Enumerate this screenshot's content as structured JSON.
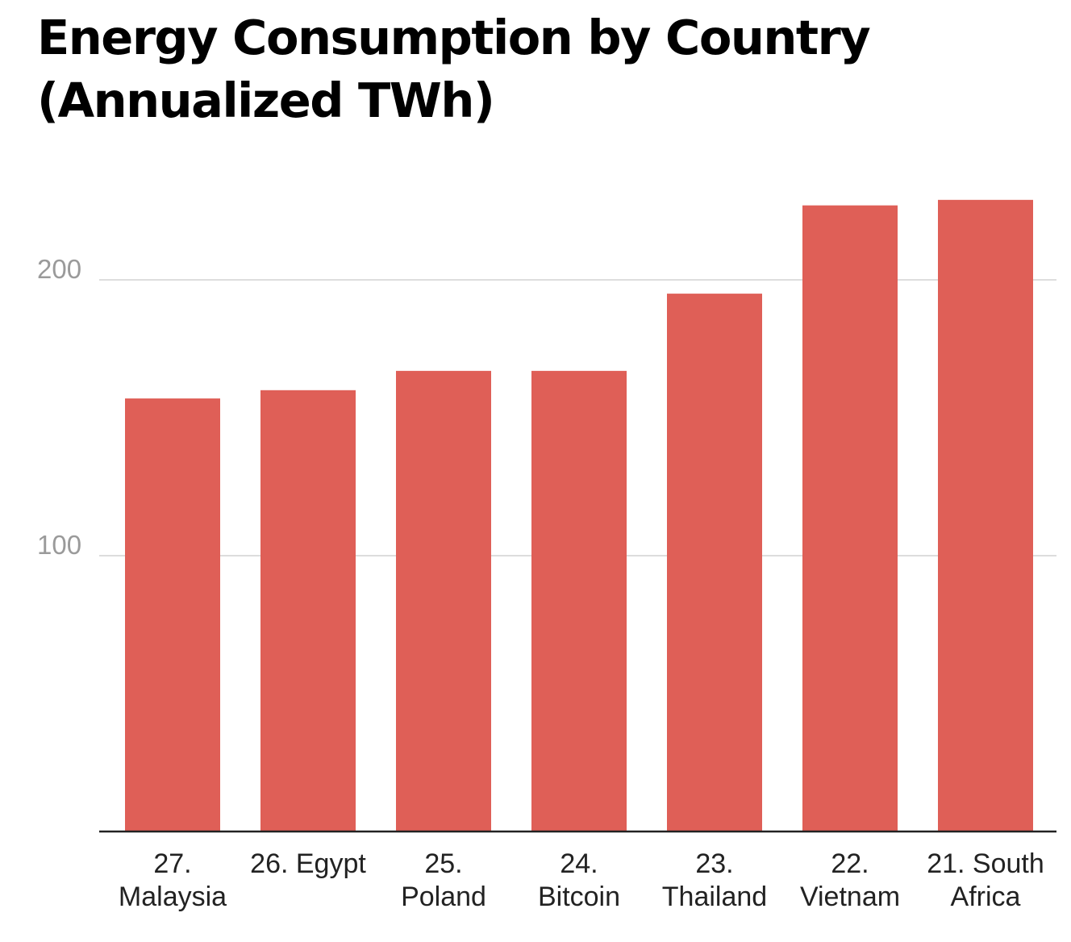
{
  "chart_data": {
    "type": "bar",
    "title_lines": [
      "Energy Consumption by Country",
      "(Annualized TWh)"
    ],
    "categories": [
      [
        "27.",
        "Malaysia"
      ],
      [
        "26. Egypt"
      ],
      [
        "25.",
        "Poland"
      ],
      [
        "24.",
        "Bitcoin"
      ],
      [
        "23.",
        "Thailand"
      ],
      [
        "22.",
        "Vietnam"
      ],
      [
        "21. South",
        "Africa"
      ]
    ],
    "values": [
      157,
      160,
      167,
      167,
      195,
      227,
      229
    ],
    "ylim": [
      0,
      240
    ],
    "yticks": [
      100,
      200
    ],
    "ytick_labels": [
      "100",
      "200"
    ],
    "xlabel": "",
    "ylabel": "",
    "grid": true,
    "colors": {
      "bar": "#df5f57",
      "grid": "#dddddd",
      "baseline": "#222222",
      "tick_text": "#9a9a9a",
      "category_text": "#222222"
    }
  }
}
